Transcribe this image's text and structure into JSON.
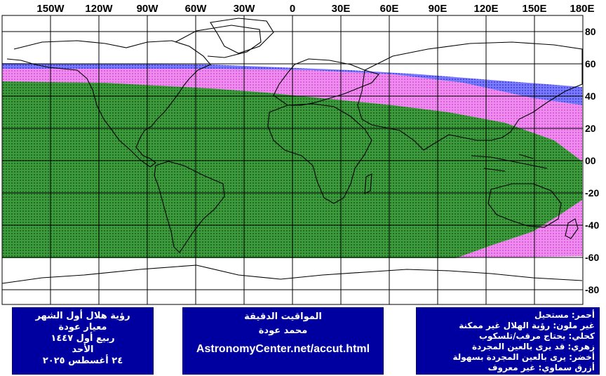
{
  "top_labels": [
    "150W",
    "120W",
    "90W",
    "60W",
    "30W",
    "0",
    "30E",
    "60E",
    "90E",
    "120E",
    "150E",
    "180E"
  ],
  "right_labels": [
    "80",
    "60",
    "40",
    "20",
    "00",
    "-20",
    "-40",
    "-60",
    "-80"
  ],
  "colors": {
    "green_zone": "#2e8b2e",
    "magenta_zone": "#ee82ee",
    "blue_zone": "#6b6bff",
    "panel_bg": "#0000a0",
    "grid": "#000000"
  },
  "panel_left": {
    "line1": "رؤية هلال أول الشهر",
    "line2": "معيار عودة",
    "line3": "ربيع أول ١٤٤٧",
    "line4": "الأحد",
    "line5": "٢٤ أغسطس ٢٠٢٥"
  },
  "panel_mid": {
    "line1": "المواقيت الدقيقة",
    "line2": "محمد عودة",
    "url": "AstronomyCenter.net/accut.html"
  },
  "panel_right": {
    "line1": "أحمر: مستحيل",
    "line2": "غير ملون: رؤية الهلال غير ممكنة",
    "line3": "كحلي: يحتاج مرقب/تلسكوب",
    "line4": "زهري: قد يرى بالعين المجردة",
    "line5": "أخضر: يرى بالعين المجردة بسهولة",
    "line6": "أزرق سماوي: غير معروف"
  }
}
